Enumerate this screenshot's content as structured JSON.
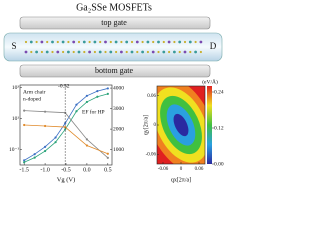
{
  "title": "Ga₂SSe MOSFETs",
  "device": {
    "top_gate": "top gate",
    "bottom_gate": "bottom gate",
    "source": "S",
    "drain": "D"
  },
  "chart_data": [
    {
      "type": "line",
      "x_label": "Vg (V)",
      "log_y": true,
      "xlim": [
        -1.6,
        0.6
      ],
      "xticks": [
        -1.5,
        {
          "value": -1.0,
          "label": "-1.0"
        },
        -0.5,
        {
          "value": 0.0,
          "label": "0.0"
        },
        0.5
      ],
      "ylim": [
        0.01,
        1500
      ],
      "yticks": [
        {
          "value": 0.1,
          "label": "10⁻¹"
        },
        {
          "value": 10,
          "label": "10¹"
        },
        {
          "value": 1000,
          "label": "10³"
        }
      ],
      "y2lim": [
        250,
        4150
      ],
      "y2ticks": [
        1000,
        2000,
        3000,
        4000
      ],
      "annotations": [
        "Arm chair",
        "n-doped",
        "-0.52",
        "EF for HP"
      ],
      "series": [
        {
          "color": "#3a6fc4",
          "x": [
            -1.5,
            -1.25,
            -1.0,
            -0.75,
            -0.52,
            -0.25,
            0.0,
            0.25,
            0.5
          ],
          "values": [
            0.02,
            0.05,
            0.15,
            0.6,
            5,
            80,
            300,
            600,
            900
          ]
        },
        {
          "color": "#2aa37a",
          "x": [
            -1.5,
            -1.25,
            -1.0,
            -0.75,
            -0.52,
            -0.25,
            0.0,
            0.25,
            0.5
          ],
          "values": [
            0.015,
            0.03,
            0.08,
            0.3,
            2,
            30,
            120,
            260,
            400
          ]
        },
        {
          "color": "#888888",
          "axis": "y2",
          "x": [
            -1.5,
            -1.0,
            -0.52,
            0.0,
            0.5
          ],
          "values": [
            2900,
            2850,
            2800,
            1500,
            600
          ]
        },
        {
          "color": "#e08a2a",
          "axis": "y2",
          "x": [
            -1.5,
            -1.0,
            -0.52,
            0.0,
            0.5
          ],
          "values": [
            2200,
            2150,
            2100,
            1200,
            800
          ]
        }
      ]
    },
    {
      "type": "heatmap",
      "x_label": "qx[2π/a]",
      "y_label": "qy[2π/a]",
      "colorbar_label": "(eV/Å)",
      "xlim": [
        -0.08,
        0.08
      ],
      "xticks": [
        -0.06,
        0,
        0.06
      ],
      "ylim": [
        -0.08,
        0.08
      ],
      "yticks": [
        -0.06,
        0,
        0.06
      ],
      "colorbar_lim": [
        0,
        0.26
      ],
      "colorbar_ticks": [
        {
          "value": 0,
          "label": "0.00"
        },
        0.12,
        0.24
      ]
    }
  ]
}
